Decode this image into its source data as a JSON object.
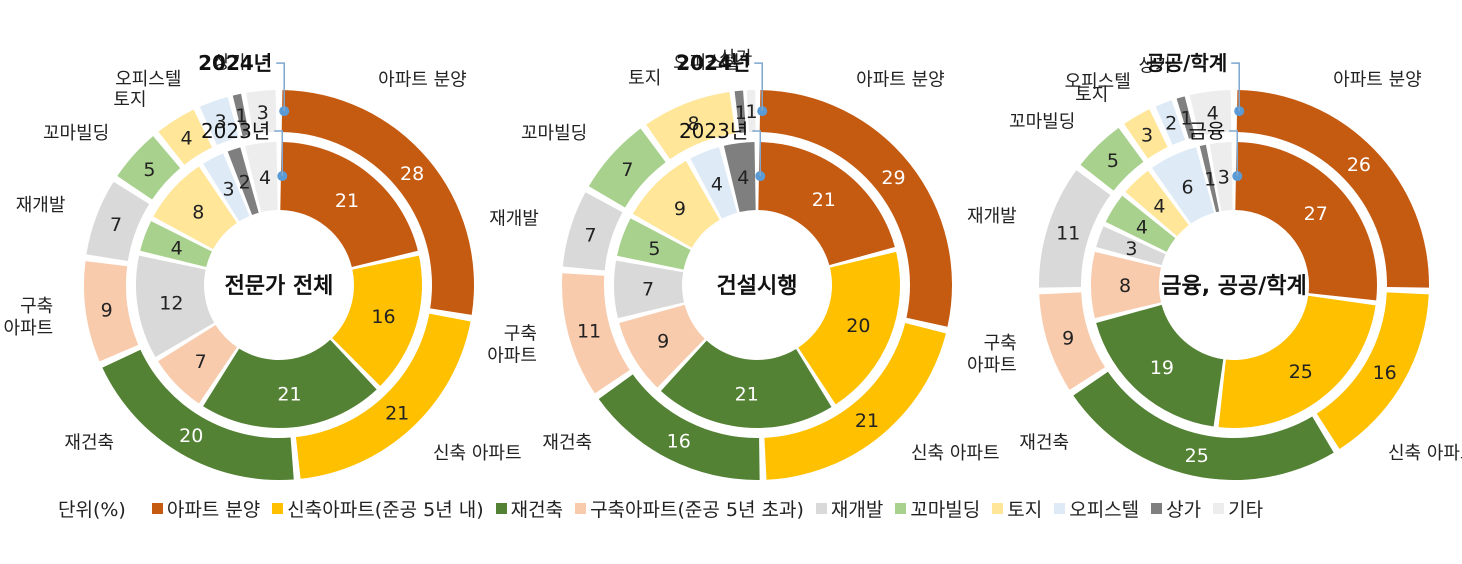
{
  "colors": {
    "아파트 분양": "#C55A11",
    "신축 아파트": "#FFC000",
    "재건축": "#548235",
    "구축 아파트": "#F8CBAD",
    "재개발": "#D9D9D9",
    "꼬마빌딩": "#A9D18E",
    "토지": "#FFE699",
    "오피스텔": "#DEEBF7",
    "상가": "#7F7F7F",
    "기타": "#EDEDED"
  },
  "chart_data": [
    {
      "type": "pie",
      "title": "전문가 전체",
      "categories": [
        "아파트 분양",
        "신축 아파트",
        "재건축",
        "구축 아파트",
        "재개발",
        "꼬마빌딩",
        "토지",
        "오피스텔",
        "상가",
        "기타"
      ],
      "category_labels": [
        "아파트 분양",
        "신축 아파트",
        "재건축",
        "구축\n아파트",
        "재개발",
        "꼬마빌딩",
        "토지",
        "오피스텔",
        "상가",
        ""
      ],
      "inner_label": "2023년",
      "outer_label": "2024년",
      "inner_values": [
        21,
        16,
        21,
        7,
        12,
        4,
        8,
        3,
        2,
        4
      ],
      "outer_values": [
        28,
        21,
        20,
        9,
        7,
        5,
        4,
        3,
        1,
        3
      ]
    },
    {
      "type": "pie",
      "title": "건설시행",
      "categories": [
        "아파트 분양",
        "신축 아파트",
        "재건축",
        "구축 아파트",
        "재개발",
        "꼬마빌딩",
        "토지",
        "오피스텔",
        "상가",
        "기타"
      ],
      "category_labels": [
        "아파트 분양",
        "신축 아파트",
        "재건축",
        "구축\n아파트",
        "재개발",
        "꼬마빌딩",
        "토지",
        "오피스텔",
        "상가",
        ""
      ],
      "inner_label": "2023년",
      "outer_label": "2024년",
      "inner_values": [
        21,
        20,
        21,
        9,
        7,
        5,
        9,
        4,
        4,
        0
      ],
      "outer_values": [
        29,
        21,
        16,
        11,
        7,
        7,
        8,
        0,
        1,
        1
      ]
    },
    {
      "type": "pie",
      "title": "금융, 공공/학계",
      "categories": [
        "아파트 분양",
        "신축 아파트",
        "재건축",
        "구축 아파트",
        "재개발",
        "꼬마빌딩",
        "토지",
        "오피스텔",
        "상가",
        "기타"
      ],
      "category_labels": [
        "아파트 분양",
        "신축 아파트",
        "재건축",
        "구축\n아파트",
        "재개발",
        "꼬마빌딩",
        "토지",
        "오피스텔",
        "상가",
        ""
      ],
      "inner_label": "금융",
      "outer_label": "공공/학계",
      "inner_values": [
        27,
        25,
        19,
        8,
        3,
        4,
        4,
        6,
        1,
        3
      ],
      "outer_values": [
        26,
        16,
        25,
        9,
        11,
        5,
        3,
        2,
        1,
        4
      ]
    }
  ],
  "legend": {
    "unit": "단위(%)",
    "items": [
      {
        "label": "아파트 분양",
        "color": "#C55A11"
      },
      {
        "label": "신축아파트(준공 5년 내)",
        "color": "#FFC000"
      },
      {
        "label": "재건축",
        "color": "#548235"
      },
      {
        "label": "구축아파트(준공 5년 초과)",
        "color": "#F8CBAD"
      },
      {
        "label": "재개발",
        "color": "#D9D9D9"
      },
      {
        "label": "꼬마빌딩",
        "color": "#A9D18E"
      },
      {
        "label": "토지",
        "color": "#FFE699"
      },
      {
        "label": "오피스텔",
        "color": "#DEEBF7"
      },
      {
        "label": "상가",
        "color": "#7F7F7F"
      },
      {
        "label": "기타",
        "color": "#EDEDED"
      }
    ]
  }
}
